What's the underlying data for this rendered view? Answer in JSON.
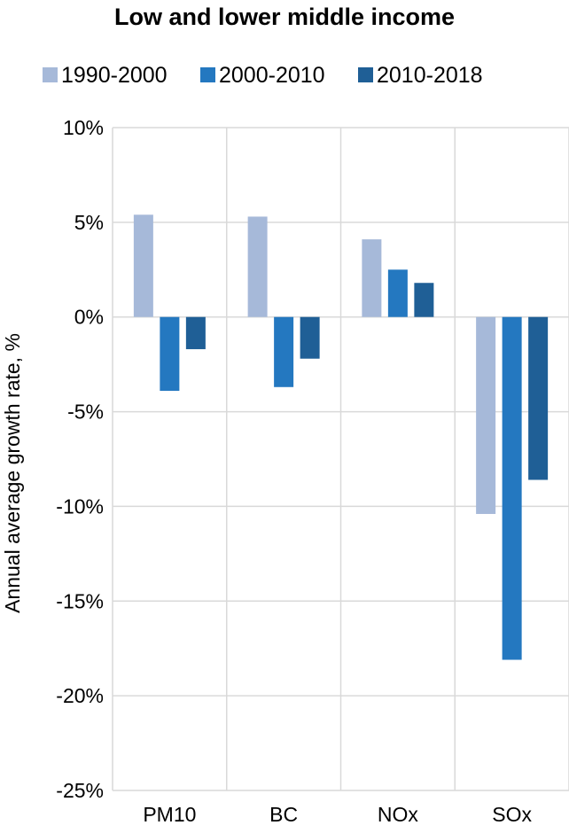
{
  "chart_data": {
    "type": "bar",
    "title": "Low and lower middle income",
    "ylabel": "Annual average growth rate, %",
    "xlabel": "",
    "categories": [
      "PM10",
      "BC",
      "NOx",
      "SOx"
    ],
    "series": [
      {
        "name": "1990-2000",
        "color": "#a6b9d9",
        "values": [
          5.4,
          5.3,
          4.1,
          -10.4
        ]
      },
      {
        "name": "2000-2010",
        "color": "#2478c0",
        "values": [
          -3.9,
          -3.7,
          2.5,
          -18.1
        ]
      },
      {
        "name": "2010-2018",
        "color": "#1f5f96",
        "values": [
          -1.7,
          -2.2,
          1.8,
          -8.6
        ]
      }
    ],
    "ylim": [
      -25,
      10
    ],
    "y_ticks": [
      10,
      5,
      0,
      -5,
      -10,
      -15,
      -20,
      -25
    ],
    "y_tick_labels": [
      "10%",
      "5%",
      "0%",
      "-5%",
      "-10%",
      "-15%",
      "-20%",
      "-25%"
    ],
    "grid": true,
    "legend_position": "top"
  }
}
